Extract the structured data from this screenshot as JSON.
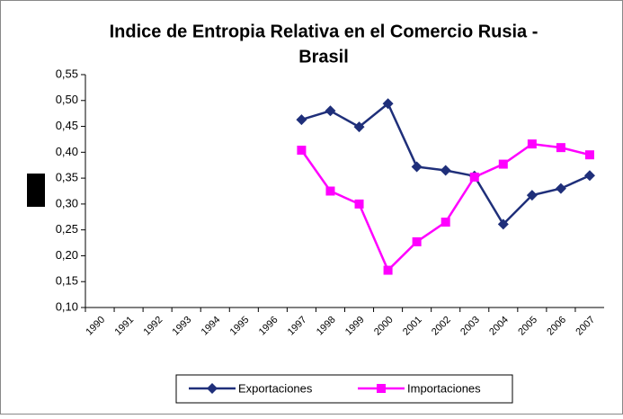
{
  "chart_data": {
    "type": "line",
    "title": [
      "Indice de Entropia Relativa en el Comercio Rusia -",
      "Brasil"
    ],
    "categories": [
      "1990",
      "1991",
      "1992",
      "1993",
      "1994",
      "1995",
      "1996",
      "1997",
      "1998",
      "1999",
      "2000",
      "2001",
      "2002",
      "2003",
      "2004",
      "2005",
      "2006",
      "2007"
    ],
    "series": [
      {
        "name": "Exportaciones",
        "color": "#1f2f7a",
        "marker": "diamond",
        "values": [
          null,
          null,
          null,
          null,
          null,
          null,
          null,
          0.463,
          0.48,
          0.449,
          0.494,
          0.372,
          0.365,
          0.354,
          0.261,
          0.317,
          0.33,
          0.355
        ]
      },
      {
        "name": "Importaciones",
        "color": "#ff00ff",
        "marker": "square",
        "values": [
          null,
          null,
          null,
          null,
          null,
          null,
          null,
          0.404,
          0.325,
          0.3,
          0.172,
          0.227,
          0.265,
          0.352,
          0.377,
          0.416,
          0.409,
          0.395
        ]
      }
    ],
    "ylim": [
      0.1,
      0.55
    ],
    "yticks": [
      {
        "value": 0.1,
        "label": "0,10"
      },
      {
        "value": 0.15,
        "label": "0,15"
      },
      {
        "value": 0.2,
        "label": "0,20"
      },
      {
        "value": 0.25,
        "label": "0,25"
      },
      {
        "value": 0.3,
        "label": "0,30"
      },
      {
        "value": 0.35,
        "label": "0,35"
      },
      {
        "value": 0.4,
        "label": "0,40"
      },
      {
        "value": 0.45,
        "label": "0,45"
      },
      {
        "value": 0.5,
        "label": "0,50"
      },
      {
        "value": 0.55,
        "label": "0,55"
      }
    ],
    "grid": false,
    "legend": "bottom"
  }
}
